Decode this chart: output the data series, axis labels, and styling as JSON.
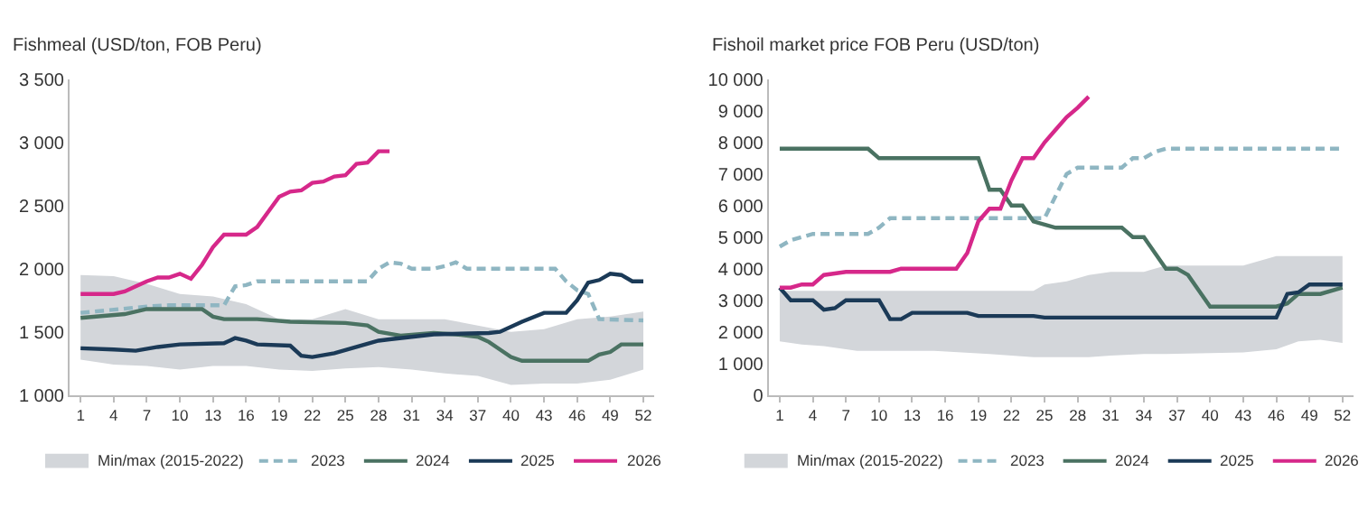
{
  "chart_data": [
    {
      "type": "line",
      "title": "Fishmeal (USD/ton, FOB Peru)",
      "xlim": [
        0,
        53
      ],
      "xticks": [
        1,
        4,
        7,
        10,
        13,
        16,
        19,
        22,
        25,
        28,
        31,
        34,
        37,
        40,
        43,
        46,
        49,
        52
      ],
      "ylim": [
        1000,
        3500
      ],
      "yticks": [
        {
          "value": 1000,
          "label": "1 000"
        },
        {
          "value": 1500,
          "label": "1 500"
        },
        {
          "value": 2000,
          "label": "2 000"
        },
        {
          "value": 2500,
          "label": "2 500"
        },
        {
          "value": 3000,
          "label": "3 000"
        },
        {
          "value": 3500,
          "label": "3 500"
        }
      ],
      "grid": false,
      "legend": "bottom",
      "series": [
        {
          "name": "Min/max (2015-2022)",
          "color": "#d3d6da",
          "x": [
            1,
            4,
            7,
            10,
            13,
            16,
            19,
            22,
            25,
            28,
            31,
            34,
            37,
            40,
            43,
            46,
            49,
            52
          ],
          "values": [
            null,
            null,
            null,
            null,
            null,
            null,
            null,
            null,
            null,
            null,
            null,
            null,
            null,
            null,
            null,
            null,
            null,
            null
          ],
          "lower": [
            1280,
            1240,
            1230,
            1200,
            1230,
            1230,
            1200,
            1190,
            1210,
            1220,
            1200,
            1170,
            1150,
            1080,
            1090,
            1090,
            1120,
            1200
          ],
          "upper": [
            1950,
            1940,
            1880,
            1800,
            1780,
            1720,
            1600,
            1600,
            1680,
            1600,
            1600,
            1600,
            1550,
            1500,
            1520,
            1600,
            1620,
            1660
          ]
        },
        {
          "name": "2023",
          "color": "#8fb6c2",
          "line_style": "dashed",
          "x": [
            1,
            7,
            9,
            14,
            15,
            16,
            17,
            27,
            28,
            29,
            30,
            31,
            33,
            34,
            35,
            36,
            44,
            45,
            46,
            47,
            48,
            52
          ],
          "values": [
            1650,
            1700,
            1710,
            1710,
            1860,
            1870,
            1900,
            1900,
            2000,
            2050,
            2040,
            2000,
            2000,
            2020,
            2050,
            2000,
            2000,
            1900,
            1830,
            1800,
            1600,
            1590
          ]
        },
        {
          "name": "2024",
          "color": "#4a7262",
          "x": [
            1,
            5,
            7,
            12,
            13,
            14,
            17,
            20,
            25,
            27,
            28,
            30,
            33,
            35,
            37,
            38,
            39,
            40,
            41,
            47,
            48,
            49,
            50,
            52
          ],
          "values": [
            1610,
            1640,
            1680,
            1680,
            1620,
            1600,
            1600,
            1580,
            1570,
            1550,
            1500,
            1470,
            1490,
            1480,
            1460,
            1420,
            1360,
            1300,
            1270,
            1270,
            1320,
            1340,
            1400,
            1400
          ]
        },
        {
          "name": "2025",
          "color": "#1b3a57",
          "x": [
            1,
            4,
            6,
            8,
            10,
            14,
            15,
            16,
            17,
            20,
            21,
            22,
            24,
            26,
            28,
            29,
            31,
            33,
            38,
            39,
            41,
            43,
            45,
            46,
            47,
            48,
            49,
            50,
            51,
            52
          ],
          "values": [
            1370,
            1360,
            1350,
            1380,
            1400,
            1410,
            1450,
            1430,
            1400,
            1390,
            1310,
            1300,
            1330,
            1380,
            1430,
            1440,
            1460,
            1480,
            1490,
            1500,
            1580,
            1650,
            1650,
            1750,
            1890,
            1910,
            1960,
            1950,
            1900,
            1900
          ]
        },
        {
          "name": "2026",
          "color": "#d6288a",
          "x": [
            1,
            2,
            3,
            4,
            5,
            6,
            7,
            8,
            9,
            10,
            11,
            12,
            13,
            14,
            15,
            16,
            17,
            18,
            19,
            20,
            21,
            22,
            23,
            24,
            25,
            26,
            27,
            28,
            29
          ],
          "values": [
            1800,
            1800,
            1800,
            1800,
            1820,
            1860,
            1900,
            1930,
            1930,
            1960,
            1920,
            2030,
            2170,
            2270,
            2270,
            2270,
            2330,
            2450,
            2570,
            2610,
            2620,
            2680,
            2690,
            2730,
            2740,
            2830,
            2840,
            2930,
            2930
          ]
        }
      ]
    },
    {
      "type": "line",
      "title": "Fishoil market price FOB Peru (USD/ton)",
      "xlim": [
        0,
        53
      ],
      "xticks": [
        1,
        4,
        7,
        10,
        13,
        16,
        19,
        22,
        25,
        28,
        31,
        34,
        37,
        40,
        43,
        46,
        49,
        52
      ],
      "ylim": [
        0,
        10000
      ],
      "yticks": [
        0,
        {
          "value": 1000,
          "label": "1 000"
        },
        {
          "value": 2000,
          "label": "2 000"
        },
        {
          "value": 3000,
          "label": "3 000"
        },
        {
          "value": 4000,
          "label": "4 000"
        },
        {
          "value": 5000,
          "label": "5 000"
        },
        {
          "value": 6000,
          "label": "6 000"
        },
        {
          "value": 7000,
          "label": "7 000"
        },
        {
          "value": 8000,
          "label": "8 000"
        },
        {
          "value": 9000,
          "label": "9 000"
        },
        {
          "value": 10000,
          "label": "10 000"
        }
      ],
      "grid": false,
      "legend": "bottom",
      "series": [
        {
          "name": "Min/max (2015-2022)",
          "color": "#d3d6da",
          "x": [
            1,
            3,
            5,
            8,
            15,
            20,
            24,
            25,
            27,
            29,
            31,
            34,
            36,
            43,
            46,
            48,
            50,
            52
          ],
          "values": [
            null,
            null,
            null,
            null,
            null,
            null,
            null,
            null,
            null,
            null,
            null,
            null,
            null,
            null,
            null,
            null,
            null,
            null
          ],
          "lower": [
            1700,
            1600,
            1550,
            1400,
            1400,
            1300,
            1200,
            1200,
            1200,
            1200,
            1250,
            1300,
            1300,
            1350,
            1450,
            1700,
            1750,
            1650
          ],
          "upper": [
            3300,
            3300,
            3300,
            3300,
            3300,
            3300,
            3300,
            3500,
            3600,
            3800,
            3900,
            3900,
            4100,
            4100,
            4400,
            4400,
            4400,
            4400
          ]
        },
        {
          "name": "2023",
          "color": "#8fb6c2",
          "line_style": "dashed",
          "x": [
            1,
            2,
            3,
            4,
            9,
            10,
            11,
            25,
            26,
            27,
            28,
            32,
            33,
            34,
            35,
            36,
            52
          ],
          "values": [
            4700,
            4900,
            5000,
            5100,
            5100,
            5300,
            5600,
            5600,
            6300,
            7000,
            7200,
            7200,
            7500,
            7500,
            7700,
            7800,
            7800
          ]
        },
        {
          "name": "2024",
          "color": "#4a7262",
          "x": [
            1,
            9,
            10,
            19,
            20,
            21,
            22,
            23,
            24,
            26,
            32,
            33,
            34,
            35,
            36,
            37,
            38,
            39,
            40,
            46,
            47,
            48,
            50,
            52
          ],
          "values": [
            7800,
            7800,
            7500,
            7500,
            6500,
            6500,
            6000,
            6000,
            5500,
            5300,
            5300,
            5000,
            5000,
            4500,
            4000,
            4000,
            3800,
            3300,
            2800,
            2800,
            2900,
            3200,
            3200,
            3400
          ]
        },
        {
          "name": "2025",
          "color": "#1b3a57",
          "x": [
            1,
            2,
            4,
            5,
            6,
            7,
            10,
            11,
            12,
            13,
            18,
            19,
            24,
            25,
            46,
            47,
            48,
            49,
            52
          ],
          "values": [
            3400,
            3000,
            3000,
            2700,
            2750,
            3000,
            3000,
            2400,
            2400,
            2600,
            2600,
            2500,
            2500,
            2450,
            2450,
            3200,
            3250,
            3500,
            3500
          ]
        },
        {
          "name": "2026",
          "color": "#d6288a",
          "x": [
            1,
            2,
            3,
            4,
            5,
            6,
            7,
            11,
            12,
            17,
            18,
            19,
            20,
            21,
            22,
            23,
            24,
            25,
            26,
            27,
            28,
            29
          ],
          "values": [
            3400,
            3400,
            3500,
            3500,
            3800,
            3850,
            3900,
            3900,
            4000,
            4000,
            4500,
            5500,
            5900,
            5900,
            6800,
            7500,
            7500,
            8000,
            8400,
            8800,
            9100,
            9450
          ]
        }
      ]
    }
  ]
}
